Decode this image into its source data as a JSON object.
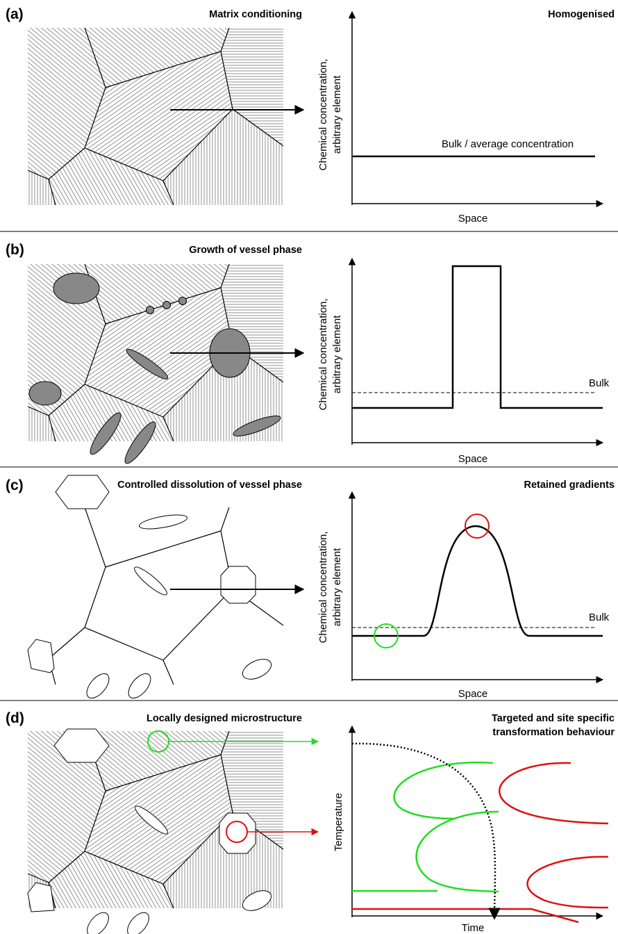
{
  "panels": [
    {
      "label": "(a)",
      "title": "Matrix conditioning",
      "plot_title": "Homogenised",
      "y_label": [
        "Chemical concentration,",
        "arbitrary element"
      ],
      "x_label": "Space",
      "annotation": "Bulk / average concentration"
    },
    {
      "label": "(b)",
      "title": "Growth of vessel phase",
      "y_label": [
        "Chemical concentration,",
        "arbitrary element"
      ],
      "x_label": "Space",
      "annotation": "Bulk"
    },
    {
      "label": "(c)",
      "title": "Controlled dissolution of vessel phase",
      "plot_title": "Retained gradients",
      "y_label": [
        "Chemical concentration,",
        "arbitrary element"
      ],
      "x_label": "Space",
      "annotation": "Bulk"
    },
    {
      "label": "(d)",
      "title": "Locally designed microstructure",
      "plot_title": [
        "Targeted and site specific",
        "transformation behaviour"
      ],
      "y_label": "Temperature",
      "x_label": "Time"
    }
  ]
}
